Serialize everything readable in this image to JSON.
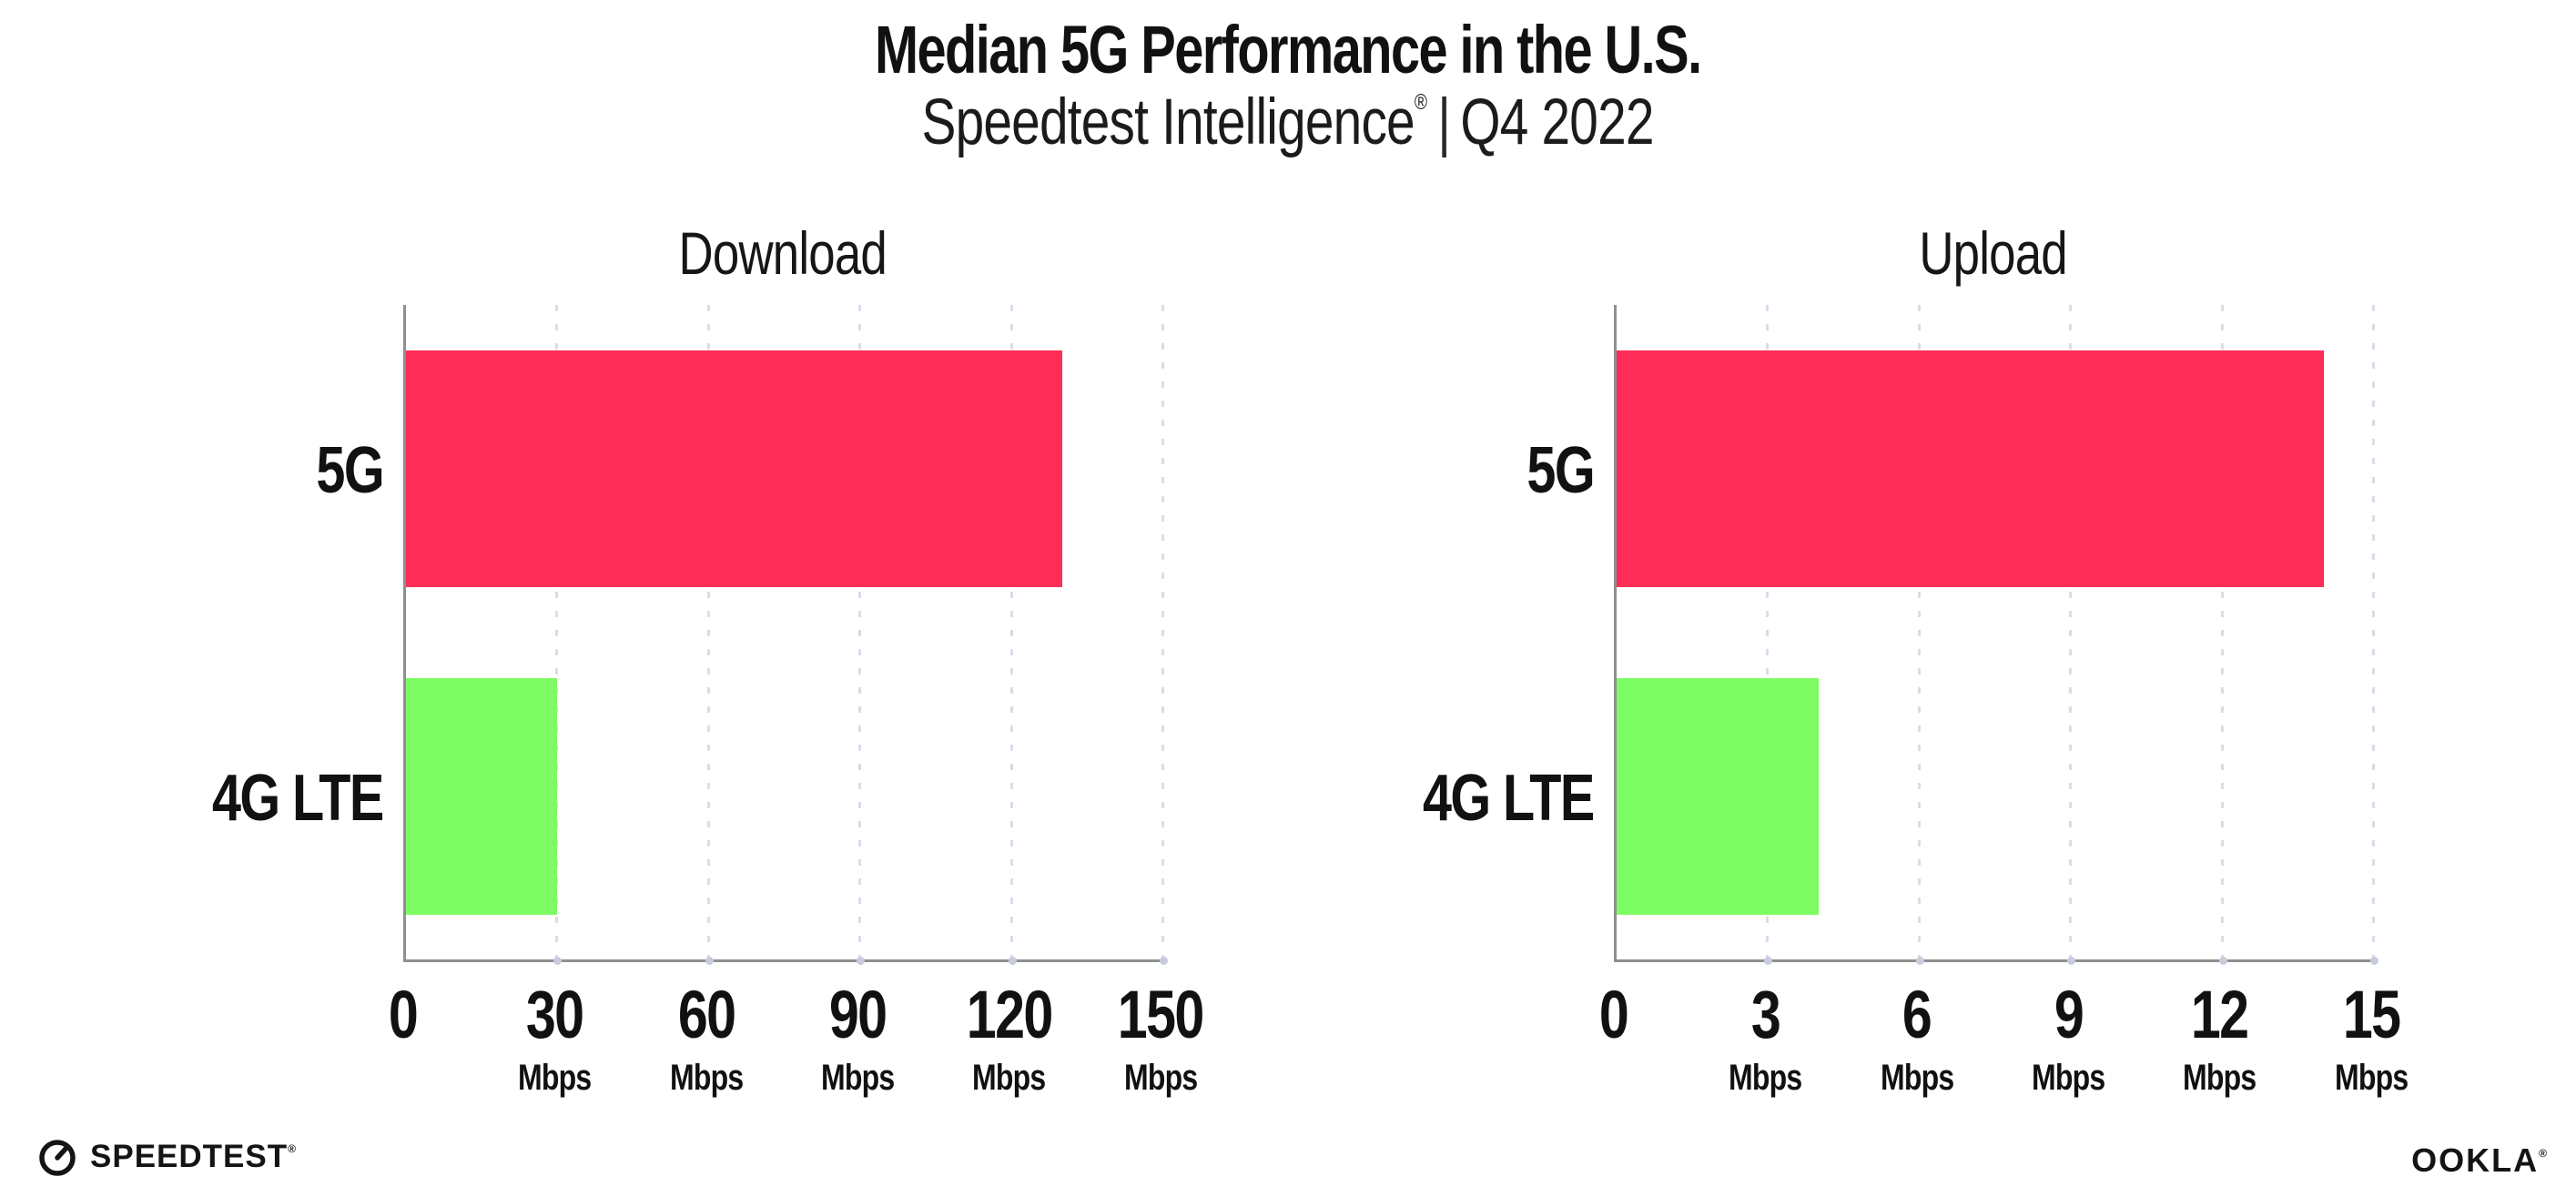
{
  "header": {
    "title": "Median 5G Performance in the U.S.",
    "subtitle_brand": "Speedtest Intelligence",
    "subtitle_registered": "®",
    "subtitle_separator": "|",
    "subtitle_period": "Q4 2022"
  },
  "chart_data": [
    {
      "type": "bar",
      "orientation": "horizontal",
      "title": "Download",
      "categories": [
        "5G",
        "4G LTE"
      ],
      "values": [
        130,
        30
      ],
      "unit": "Mbps",
      "xlim": [
        0,
        150
      ],
      "xticks": [
        0,
        30,
        60,
        90,
        120,
        150
      ],
      "xtick_unit": "Mbps",
      "grid": "vertical dotted",
      "legend": "none",
      "bar_colors": [
        "#FF2D57",
        "#7DFC64"
      ]
    },
    {
      "type": "bar",
      "orientation": "horizontal",
      "title": "Upload",
      "categories": [
        "5G",
        "4G LTE"
      ],
      "values": [
        14,
        4
      ],
      "unit": "Mbps",
      "xlim": [
        0,
        15
      ],
      "xticks": [
        0,
        3,
        6,
        9,
        12,
        15
      ],
      "xtick_unit": "Mbps",
      "grid": "vertical dotted",
      "legend": "none",
      "bar_colors": [
        "#FF2D57",
        "#7DFC64"
      ]
    }
  ],
  "footer": {
    "speedtest_text": "SPEEDTEST",
    "speedtest_mark": "®",
    "ookla_text": "OOKLA",
    "ookla_mark": "®"
  },
  "colors": {
    "bar_5g": "#FF2D57",
    "bar_4g_lte": "#7DFC64",
    "axis": "#8F8F8F",
    "gridline": "#D9DDE8",
    "tick_dot": "#C6CCDC",
    "text": "#111111"
  }
}
